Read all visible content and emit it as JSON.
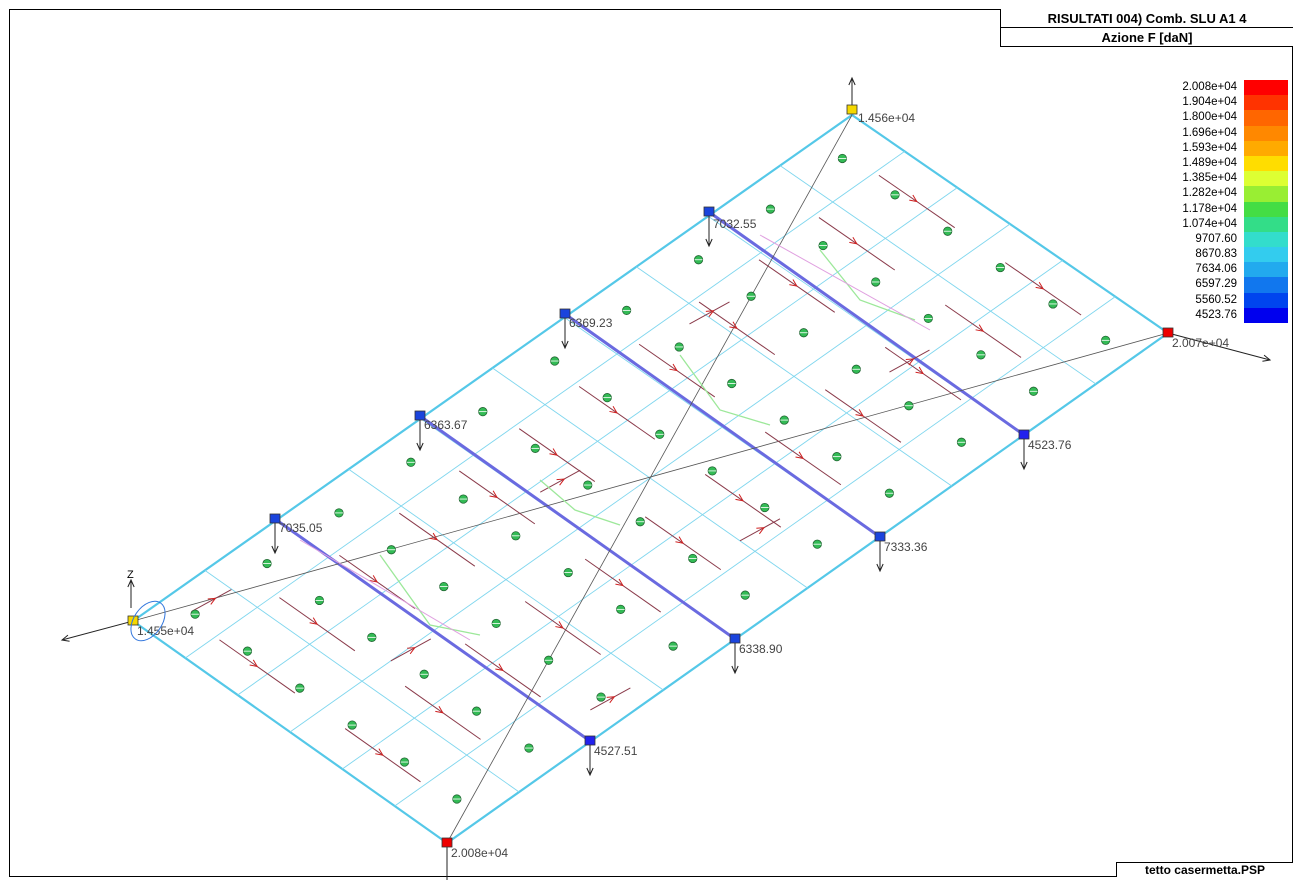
{
  "header": {
    "title_line1": "RISULTATI   004) Comb. SLU A1 4",
    "title_line2": "Azione F [daN]"
  },
  "footer": {
    "file_name": "tetto casermetta.PSP"
  },
  "legend": {
    "entries": [
      {
        "label": "2.008e+04",
        "color": "#ff0000"
      },
      {
        "label": "1.904e+04",
        "color": "#ff3300"
      },
      {
        "label": "1.800e+04",
        "color": "#ff6600"
      },
      {
        "label": "1.696e+04",
        "color": "#ff8800"
      },
      {
        "label": "1.593e+04",
        "color": "#ffaa00"
      },
      {
        "label": "1.489e+04",
        "color": "#ffdd00"
      },
      {
        "label": "1.385e+04",
        "color": "#ddff33"
      },
      {
        "label": "1.282e+04",
        "color": "#99ee33"
      },
      {
        "label": "1.178e+04",
        "color": "#44dd44"
      },
      {
        "label": "1.074e+04",
        "color": "#33dd88"
      },
      {
        "label": "9707.60",
        "color": "#33ddcc"
      },
      {
        "label": "8670.83",
        "color": "#33ccee"
      },
      {
        "label": "7634.06",
        "color": "#22aaee"
      },
      {
        "label": "6597.29",
        "color": "#1177ee"
      },
      {
        "label": "5560.52",
        "color": "#0044ee"
      },
      {
        "label": "4523.76",
        "color": "#0000ee"
      }
    ]
  },
  "axis": {
    "z_label": "Z"
  },
  "nodes": [
    {
      "id": "top-corner",
      "label": "1.456e+04",
      "color": "#f5d800"
    },
    {
      "id": "right-corner",
      "label": "2.007e+04",
      "color": "#ee0000"
    },
    {
      "id": "bottom-corner",
      "label": "2.008e+04",
      "color": "#ee0000"
    },
    {
      "id": "left-corner",
      "label": "1.455e+04",
      "color": "#f5d800"
    },
    {
      "id": "upper-1",
      "label": "7035.05",
      "color": "#1a44dd"
    },
    {
      "id": "upper-2",
      "label": "6363.67",
      "color": "#1a44dd"
    },
    {
      "id": "upper-3",
      "label": "6369.23",
      "color": "#1a44dd"
    },
    {
      "id": "upper-4",
      "label": "7032.55",
      "color": "#1a44dd"
    },
    {
      "id": "lower-1",
      "label": "4527.51",
      "color": "#2222ee"
    },
    {
      "id": "lower-2",
      "label": "6338.90",
      "color": "#1a44dd"
    },
    {
      "id": "lower-3",
      "label": "7333.36",
      "color": "#1a44dd"
    },
    {
      "id": "lower-4",
      "label": "4523.76",
      "color": "#2222ee"
    }
  ],
  "colors": {
    "outline": "#55c8e8",
    "purlin": "#6a6ae0",
    "rafter_force": "#8a3a4a",
    "arrow": "#d02020",
    "support_arrow": "#222222"
  }
}
